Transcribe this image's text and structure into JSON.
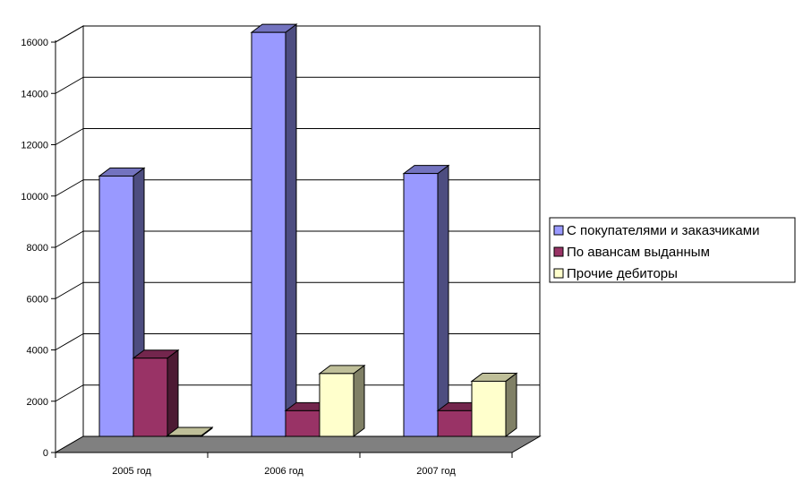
{
  "chart_data": {
    "type": "bar",
    "title": "",
    "xlabel": "",
    "ylabel": "",
    "categories": [
      "2005  год",
      "2006 год",
      "2007 год"
    ],
    "series": [
      {
        "name": "С покупателями и заказчиками",
        "values": [
          10150,
          15750,
          10250
        ],
        "color": "#9999ff"
      },
      {
        "name": "По авансам выданным",
        "values": [
          3050,
          1000,
          1000
        ],
        "color": "#993366"
      },
      {
        "name": "Прочие дебиторы",
        "values": [
          0,
          2450,
          2150
        ],
        "color": "#ffffcc"
      }
    ],
    "yticks": [
      "0",
      "2000",
      "4000",
      "6000",
      "8000",
      "10000",
      "12000",
      "14000",
      "16000"
    ],
    "ylim": [
      0,
      16000
    ],
    "grid": true,
    "legend_position": "right",
    "floor_color": "#808080"
  }
}
